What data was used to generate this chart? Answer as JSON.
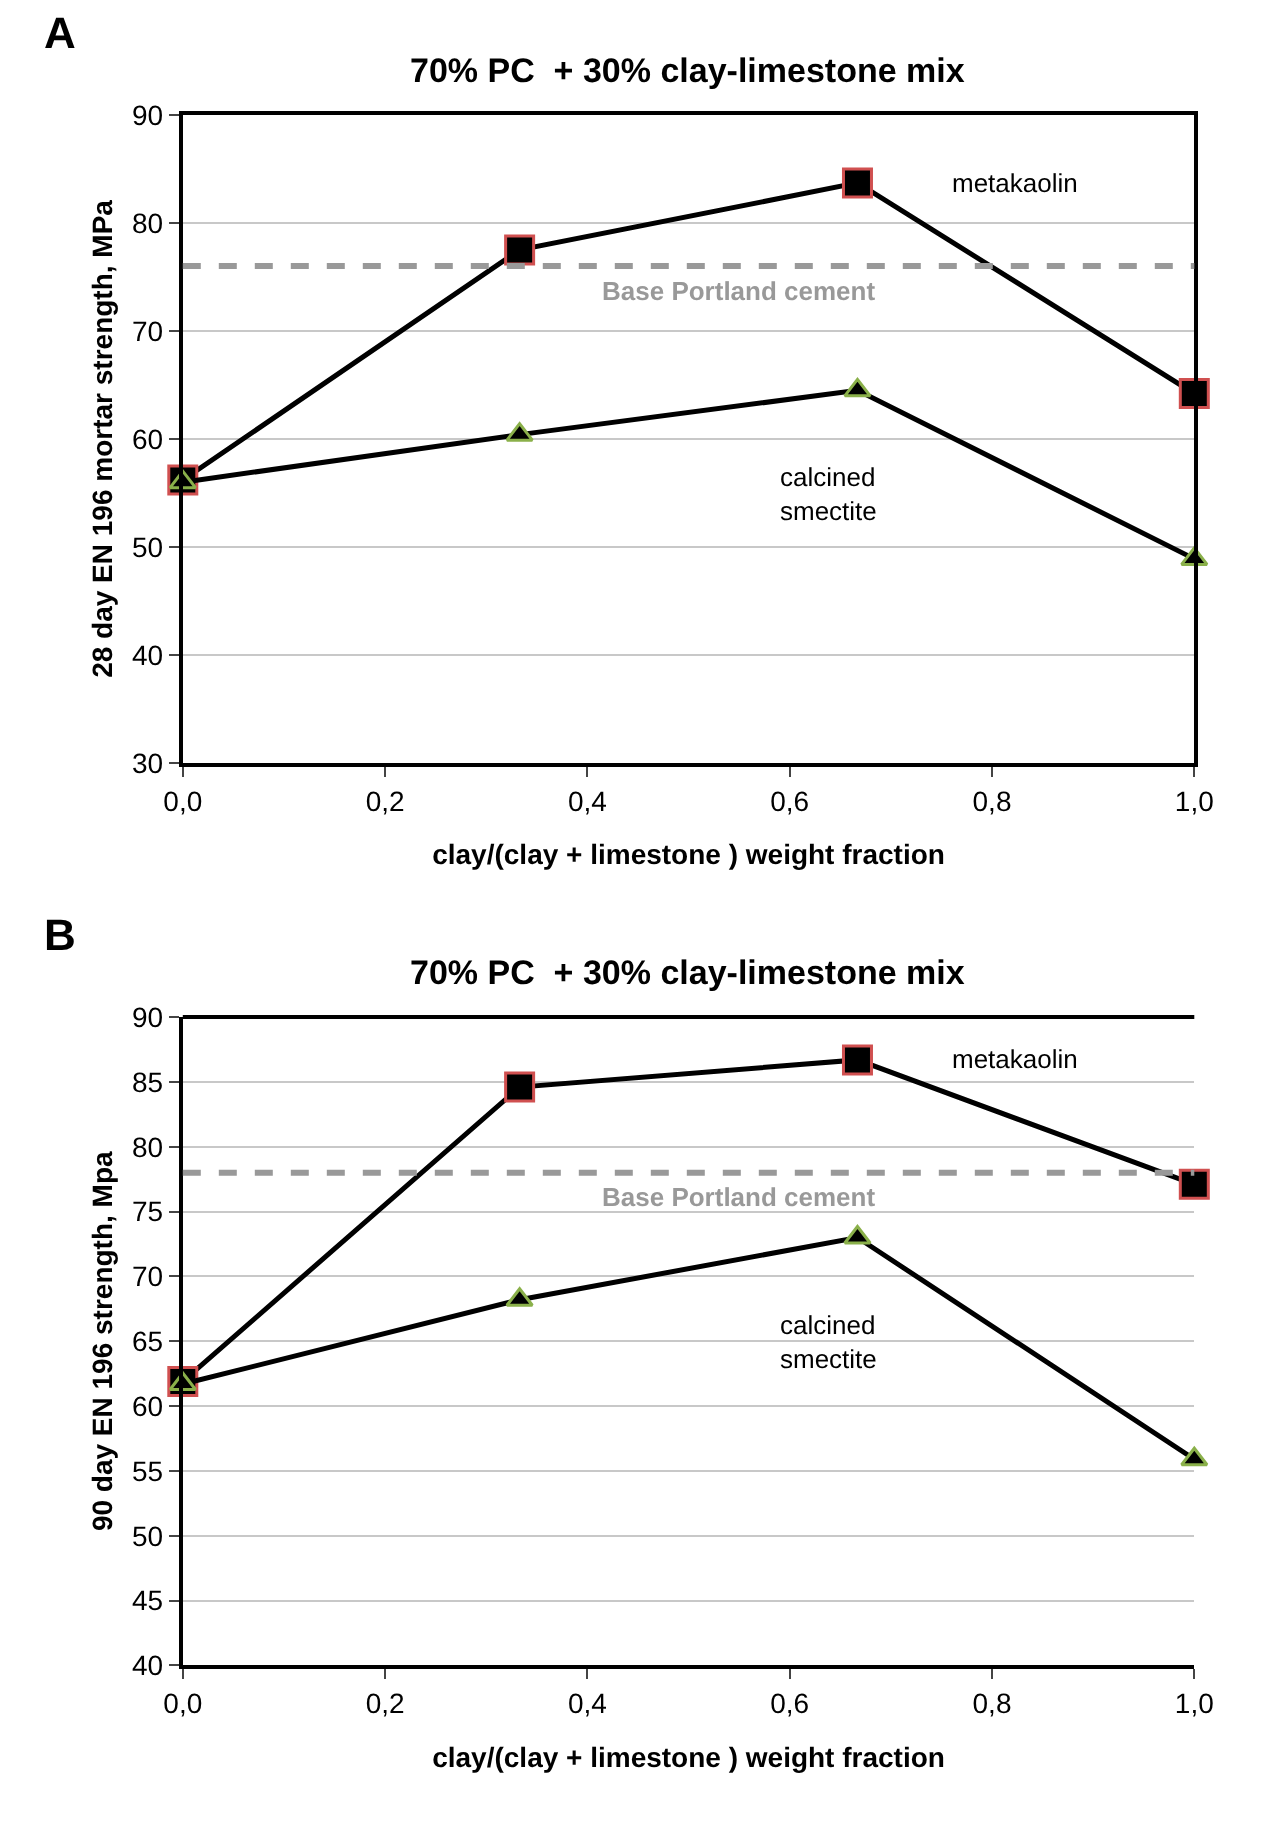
{
  "chart_data": [
    {
      "type": "line",
      "title": "70% PC  + 30% clay-limestone mix",
      "xlabel": "clay/(clay + limestone ) weight fraction",
      "ylabel": "28 day EN 196 mortar strength, MPa",
      "annotations": [
        "A"
      ],
      "x": [
        0,
        0.333,
        0.667,
        1.0
      ],
      "series": [
        {
          "name": "metakaolin",
          "color": "#000000",
          "marker": "square",
          "values": [
            56.2,
            77.5,
            83.7,
            64.2
          ]
        },
        {
          "name": "calcined smectite",
          "color": "#000000",
          "marker": "triangle",
          "values": [
            56.0,
            60.4,
            64.5,
            48.9
          ]
        }
      ],
      "ref_lines": [
        {
          "axis": "y",
          "value": 76,
          "label": "Base Portland cement",
          "color": "#999999",
          "line_style": "dashed"
        }
      ],
      "xlim": [
        0,
        1.0
      ],
      "xticks": [
        {
          "value": 0,
          "label": "0,0"
        },
        {
          "value": 0.2,
          "label": "0,2"
        },
        {
          "value": 0.4,
          "label": "0,4"
        },
        {
          "value": 0.6,
          "label": "0,6"
        },
        {
          "value": 0.8,
          "label": "0,8"
        },
        {
          "value": 1.0,
          "label": "1,0"
        }
      ],
      "ylim": [
        30,
        90
      ],
      "yticks": [
        30,
        40,
        50,
        60,
        70,
        80,
        90
      ],
      "grid": "y",
      "line_style": "solid"
    },
    {
      "type": "line",
      "title": "70% PC  + 30% clay-limestone mix",
      "xlabel": "clay/(clay + limestone ) weight fraction",
      "ylabel": "90 day EN 196 strength, Mpa",
      "annotations": [
        "B"
      ],
      "x": [
        0,
        0.333,
        0.667,
        1.0
      ],
      "series": [
        {
          "name": "metakaolin",
          "color": "#000000",
          "marker": "square",
          "values": [
            61.9,
            84.6,
            86.7,
            77.1
          ]
        },
        {
          "name": "calcined smectite",
          "color": "#000000",
          "marker": "triangle",
          "values": [
            61.7,
            68.2,
            73.0,
            55.9
          ]
        }
      ],
      "ref_lines": [
        {
          "axis": "y",
          "value": 78,
          "label": "Base Portland cement",
          "color": "#999999",
          "line_style": "dashed"
        }
      ],
      "xlim": [
        0,
        1.0
      ],
      "xticks": [
        {
          "value": 0,
          "label": "0,0"
        },
        {
          "value": 0.2,
          "label": "0,2"
        },
        {
          "value": 0.4,
          "label": "0,4"
        },
        {
          "value": 0.6,
          "label": "0,6"
        },
        {
          "value": 0.8,
          "label": "0,8"
        },
        {
          "value": 1.0,
          "label": "1,0"
        }
      ],
      "ylim": [
        40,
        90
      ],
      "yticks": [
        40,
        45,
        50,
        55,
        60,
        65,
        70,
        75,
        80,
        85,
        90
      ],
      "grid": "y",
      "line_style": "solid"
    }
  ]
}
